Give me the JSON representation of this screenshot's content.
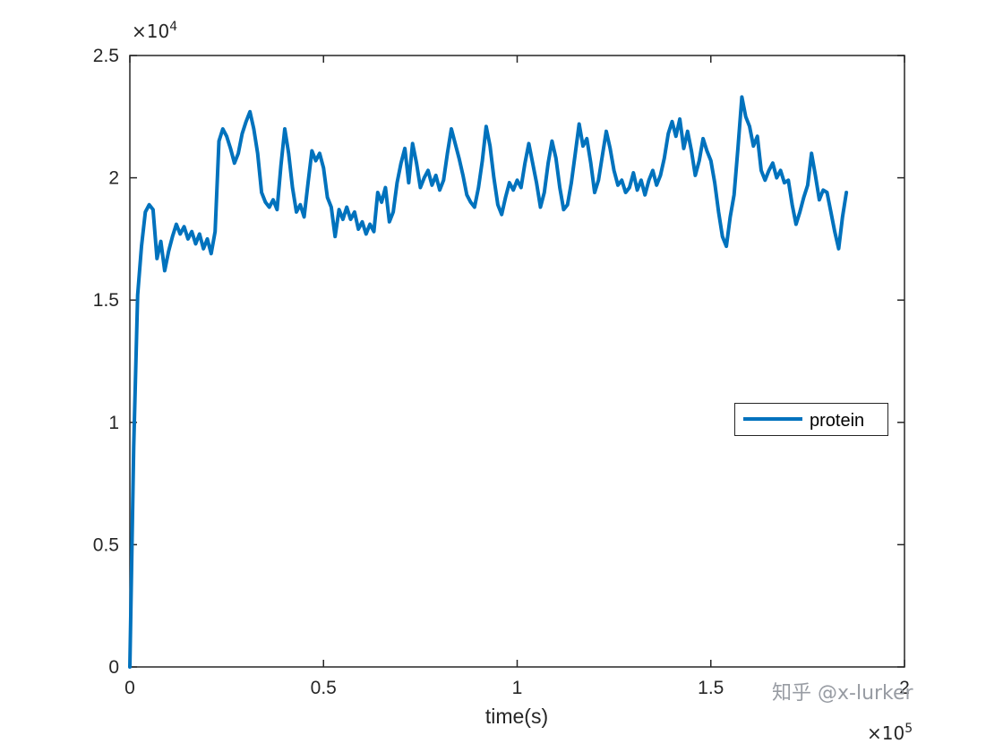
{
  "watermark": "知乎 @x-lurker",
  "chart_data": {
    "type": "line",
    "title": "",
    "xlabel": "time(s)",
    "ylabel": "",
    "xlim": [
      0,
      200000
    ],
    "ylim": [
      0,
      25000
    ],
    "xticks": [
      0,
      50000,
      100000,
      150000,
      200000
    ],
    "xtick_labels": [
      "0",
      "0.5",
      "1",
      "1.5",
      "2"
    ],
    "yticks": [
      0,
      5000,
      10000,
      15000,
      20000,
      25000
    ],
    "ytick_labels": [
      "0",
      "0.5",
      "1",
      "1.5",
      "2",
      "2.5"
    ],
    "x_exponent": {
      "base": "×10",
      "power": "5"
    },
    "y_exponent": {
      "base": "×10",
      "power": "4"
    },
    "grid": false,
    "axis_color": "#262626",
    "background": "#ffffff",
    "legend": [
      {
        "label": "protein",
        "color": "#0072BD"
      }
    ],
    "legend_position": "right-middle",
    "series": [
      {
        "name": "protein",
        "color": "#0072BD",
        "line_width": 4,
        "x_start": 0,
        "x_step": 1000,
        "y": [
          0,
          9000,
          15200,
          17200,
          18600,
          18900,
          18700,
          16700,
          17400,
          16200,
          17000,
          17600,
          18100,
          17700,
          18000,
          17500,
          17800,
          17300,
          17700,
          17100,
          17500,
          16900,
          17800,
          21500,
          22000,
          21700,
          21200,
          20600,
          21000,
          21800,
          22300,
          22700,
          22000,
          21000,
          19400,
          19000,
          18800,
          19100,
          18700,
          20500,
          22000,
          21000,
          19600,
          18600,
          18900,
          18400,
          19800,
          21100,
          20700,
          21000,
          20400,
          19200,
          18800,
          17600,
          18700,
          18300,
          18800,
          18300,
          18600,
          17900,
          18200,
          17700,
          18100,
          17800,
          19400,
          19000,
          19600,
          18200,
          18600,
          19800,
          20600,
          21200,
          19800,
          21400,
          20600,
          19600,
          20000,
          20300,
          19700,
          20100,
          19500,
          19900,
          21000,
          22000,
          21400,
          20800,
          20100,
          19300,
          19000,
          18800,
          19600,
          20700,
          22100,
          21300,
          20000,
          18900,
          18500,
          19200,
          19800,
          19500,
          19900,
          19600,
          20600,
          21400,
          20600,
          19800,
          18800,
          19400,
          20600,
          21500,
          20800,
          19600,
          18700,
          18900,
          19800,
          21000,
          22200,
          21300,
          21600,
          20600,
          19400,
          19900,
          20900,
          21900,
          21200,
          20300,
          19700,
          19900,
          19400,
          19600,
          20200,
          19500,
          19900,
          19300,
          19900,
          20300,
          19700,
          20100,
          20800,
          21800,
          22300,
          21700,
          22400,
          21200,
          21900,
          21100,
          20100,
          20700,
          21600,
          21100,
          20700,
          19800,
          18600,
          17600,
          17200,
          18400,
          19300,
          21200,
          23300,
          22500,
          22100,
          21300,
          21700,
          20300,
          19900,
          20300,
          20600,
          20000,
          20300,
          19800,
          19900,
          18900,
          18100,
          18600,
          19200,
          19700,
          21000,
          20100,
          19100,
          19500,
          19400,
          18600,
          17800,
          17100,
          18400,
          19400
        ]
      }
    ]
  }
}
